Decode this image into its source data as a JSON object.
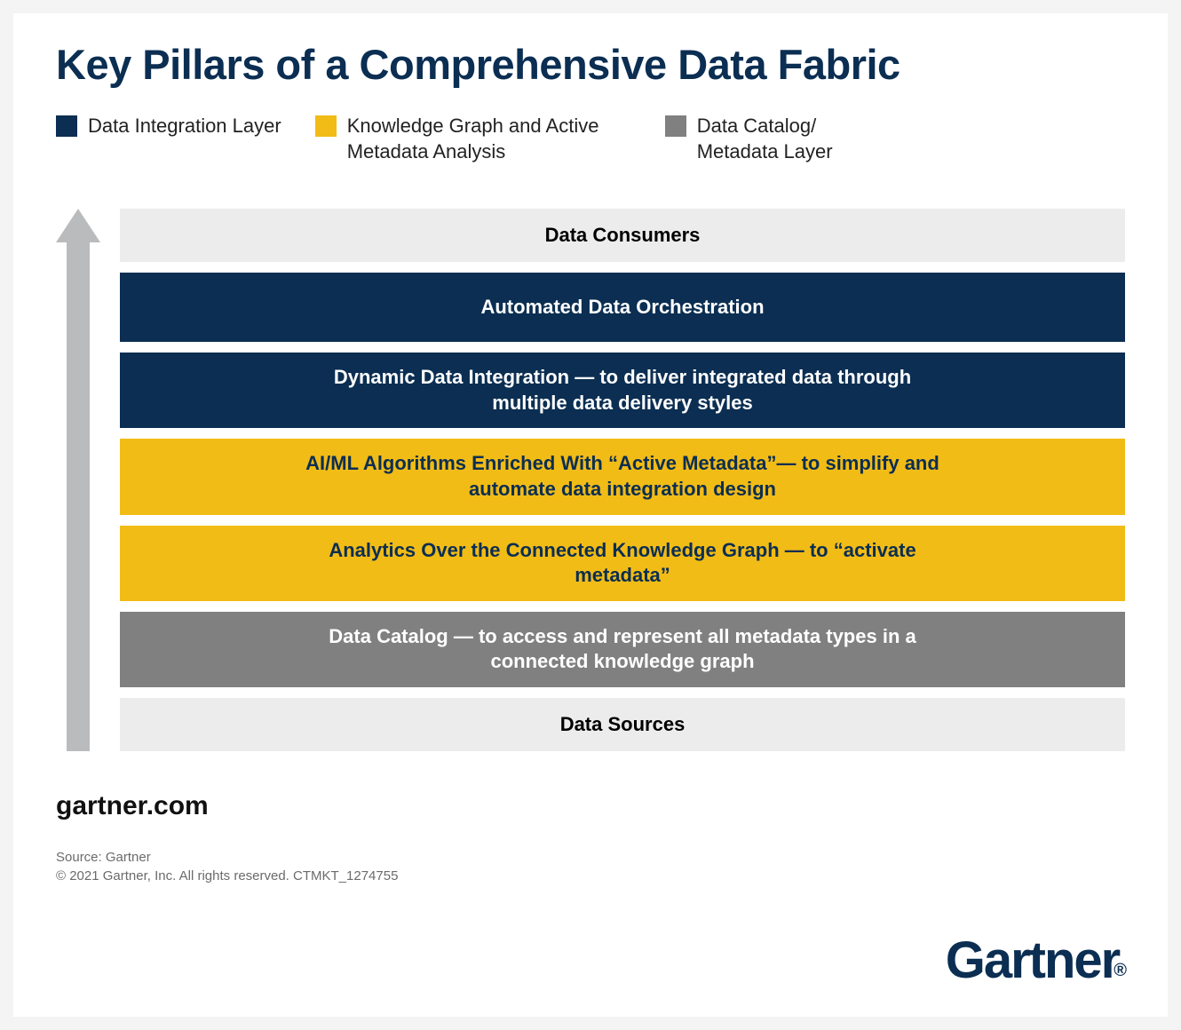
{
  "title": "Key Pillars of a Comprehensive Data Fabric",
  "colors": {
    "navy": "#0b2e52",
    "yellow": "#f2bc16",
    "gray": "#808080",
    "light_gray": "#ececec",
    "arrow_gray": "#babbbc",
    "text_dark": "#111111",
    "text_navy": "#0b2e52",
    "text_white": "#ffffff",
    "text_black": "#000000"
  },
  "legend": {
    "items": [
      {
        "label": "Data Integration Layer",
        "color": "#0b2e52"
      },
      {
        "label": "Knowledge Graph and Active Metadata Analysis",
        "color": "#f2bc16"
      },
      {
        "label": "Data Catalog/\nMetadata Layer",
        "color": "#808080"
      }
    ]
  },
  "layers": [
    {
      "label": "Data Consumers",
      "bg": "#ececec",
      "fg": "#000000",
      "size": "small"
    },
    {
      "label": "Automated Data Orchestration",
      "bg": "#0b2e52",
      "fg": "#ffffff",
      "size": "large"
    },
    {
      "label": "Dynamic Data Integration — to deliver integrated data through multiple data delivery styles",
      "bg": "#0b2e52",
      "fg": "#ffffff",
      "size": "large"
    },
    {
      "label": "AI/ML Algorithms Enriched With “Active Metadata”— to simplify and automate data integration design",
      "bg": "#f2bc16",
      "fg": "#0b2e52",
      "size": "large"
    },
    {
      "label": "Analytics Over the Connected Knowledge Graph — to “activate metadata”",
      "bg": "#f2bc16",
      "fg": "#0b2e52",
      "size": "large"
    },
    {
      "label": "Data Catalog — to access and represent all metadata types in a connected knowledge graph",
      "bg": "#808080",
      "fg": "#ffffff",
      "size": "large"
    },
    {
      "label": "Data Sources",
      "bg": "#ececec",
      "fg": "#000000",
      "size": "small"
    }
  ],
  "footer": {
    "url": "gartner.com",
    "source_line": "Source: Gartner",
    "copyright_line": "© 2021 Gartner, Inc. All rights reserved. CTMKT_1274755",
    "logo_text": "Gartner",
    "logo_suffix": "®"
  }
}
